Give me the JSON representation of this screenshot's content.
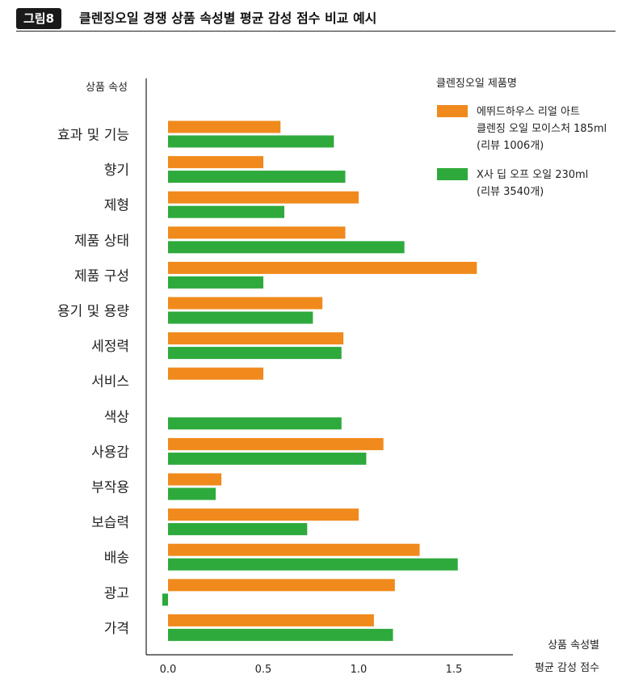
{
  "header": {
    "badge": "그림8",
    "title": "클렌징오일 경쟁 상품 속성별 평균 감성 점수 비교 예시"
  },
  "chart_data": {
    "type": "bar",
    "orientation": "horizontal",
    "y_axis_title": "상품 속성",
    "x_axis_title_line1": "상품 속성별",
    "x_axis_title_line2": "평균 감성 점수",
    "categories": [
      "효과 및 기능",
      "향기",
      "제형",
      "제품 상태",
      "제품 구성",
      "용기 및 용량",
      "세정력",
      "서비스",
      "색상",
      "사용감",
      "부작용",
      "보습력",
      "배송",
      "광고",
      "가격"
    ],
    "xlim": [
      -0.05,
      1.8
    ],
    "xticks": [
      "0.0",
      "0.5",
      "1.0",
      "1.5"
    ],
    "xtick_values": [
      0,
      0.5,
      1.0,
      1.5
    ],
    "grid": false,
    "legend_position": "top-right",
    "legend_title": "클렌징오일 제품명",
    "series": [
      {
        "label_lines": [
          "에뛰드하우스 리얼 아트",
          "클렌징 오일 모이스처 185ml",
          "(리뷰 1006개)"
        ],
        "color": "#f08a1c",
        "values": [
          0.59,
          0.5,
          1.0,
          0.93,
          1.62,
          0.81,
          0.92,
          0.5,
          null,
          1.13,
          0.28,
          1.0,
          1.32,
          1.19,
          1.08
        ]
      },
      {
        "label_lines": [
          "X사 딥 오프 오일 230ml",
          "(리뷰 3540개)"
        ],
        "color": "#2eaa3c",
        "values": [
          0.87,
          0.93,
          0.61,
          1.24,
          0.5,
          0.76,
          0.91,
          null,
          0.91,
          1.04,
          0.25,
          0.73,
          1.52,
          -0.03,
          1.18
        ]
      }
    ]
  }
}
